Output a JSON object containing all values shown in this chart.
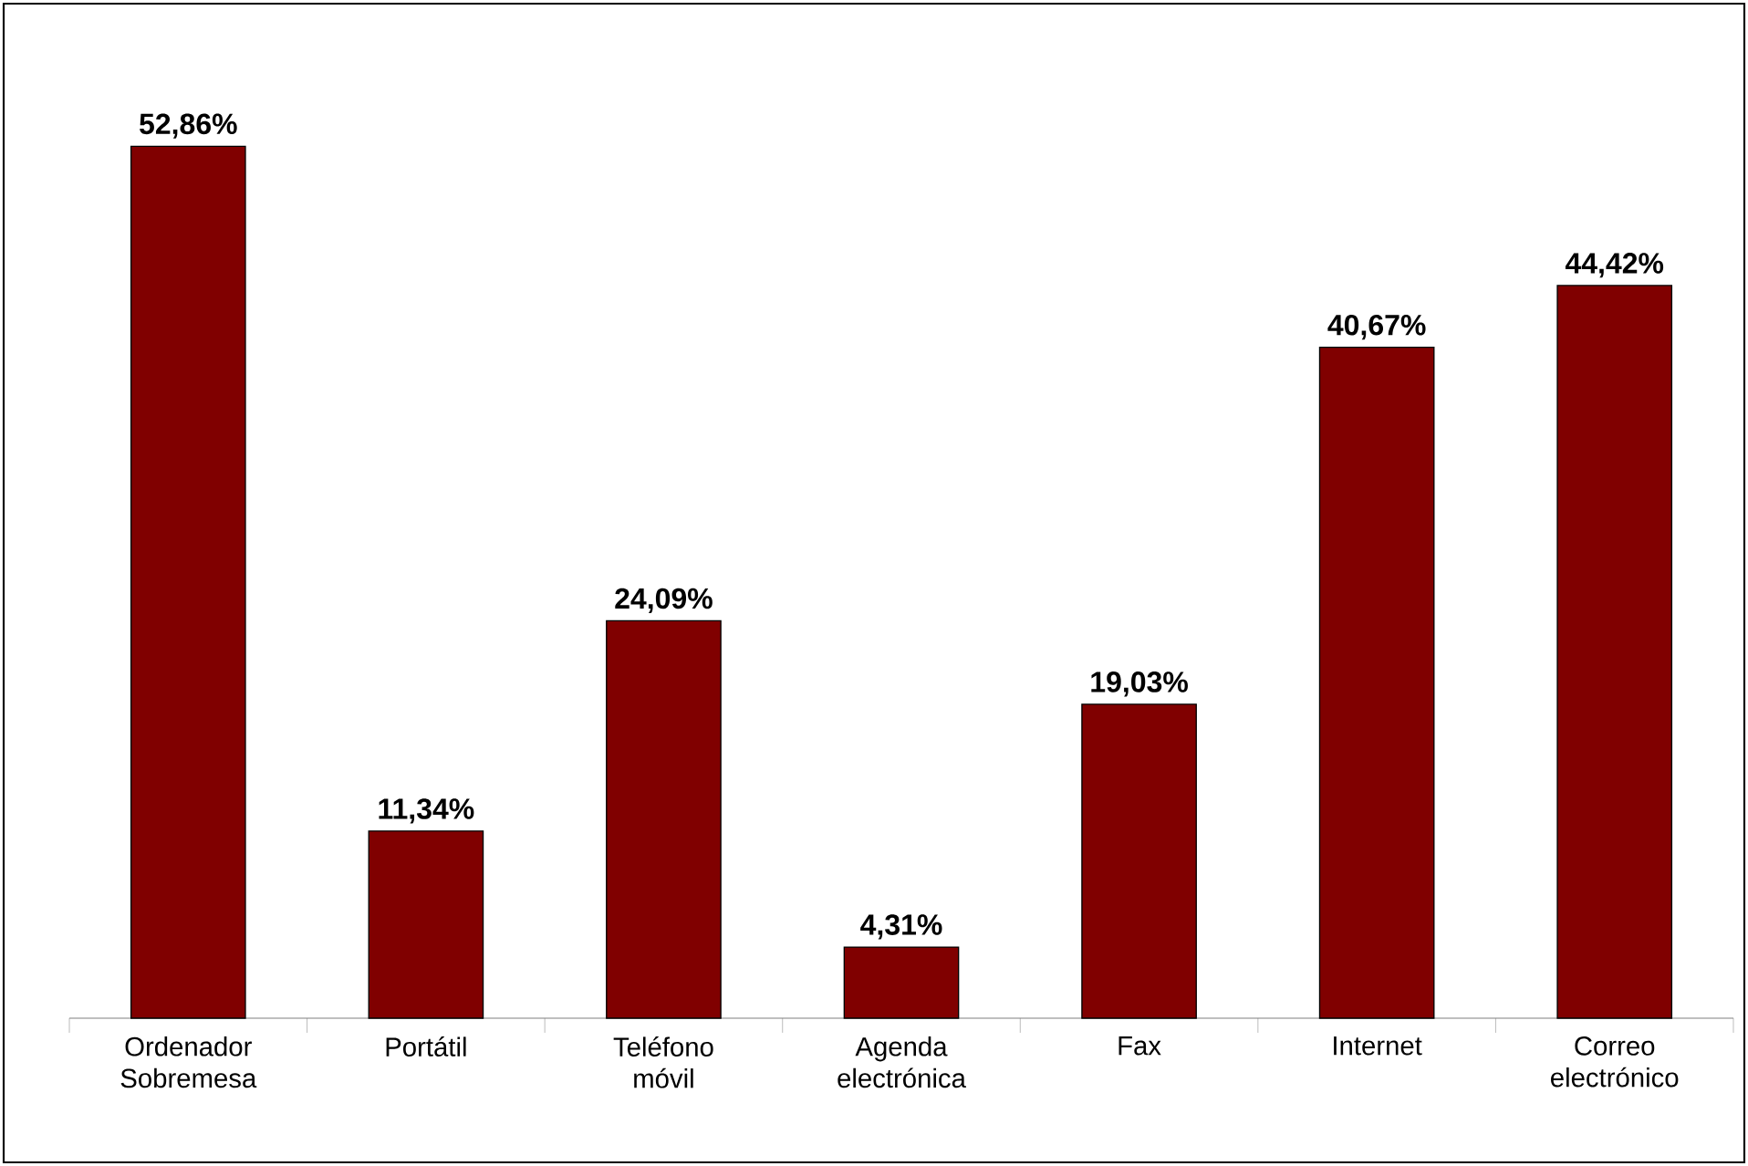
{
  "chart_data": {
    "type": "bar",
    "categories": [
      "Ordenador Sobremesa",
      "Portátil",
      "Teléfono móvil",
      "Agenda electrónica",
      "Fax",
      "Internet",
      "Correo electrónico"
    ],
    "values": [
      52.86,
      11.34,
      24.09,
      4.31,
      19.03,
      40.67,
      44.42
    ],
    "value_labels": [
      "52,86%",
      "11,34%",
      "24,09%",
      "4,31%",
      "19,03%",
      "40,67%",
      "44,42%"
    ],
    "color": "#800000"
  }
}
